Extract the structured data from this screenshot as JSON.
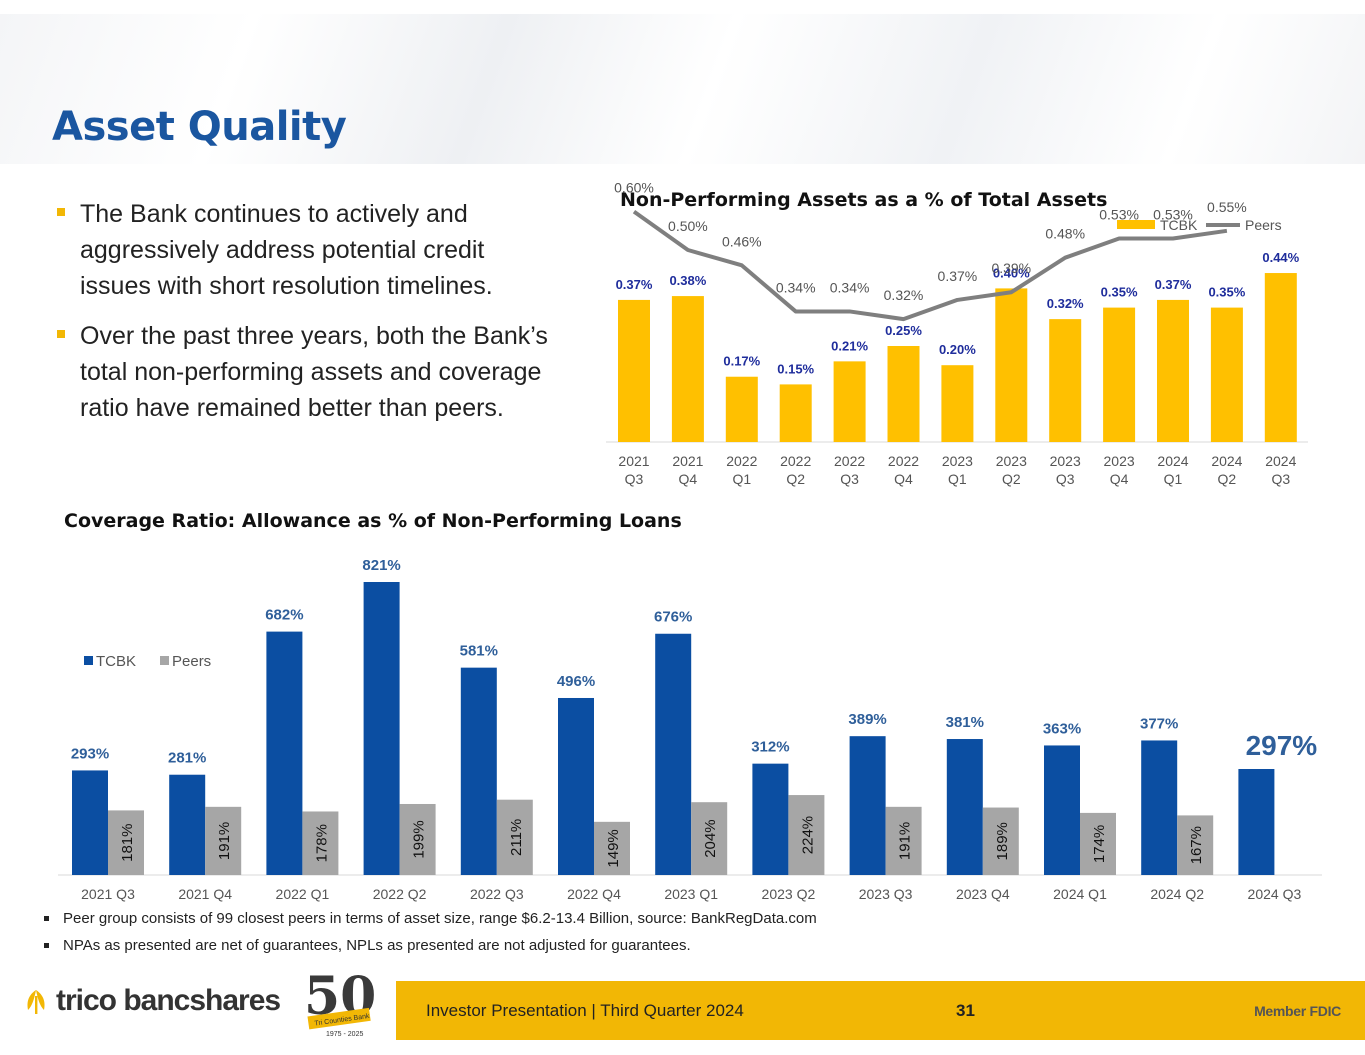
{
  "page": {
    "title": "Asset Quality",
    "bullets": [
      "The Bank continues to actively and aggressively address potential credit issues with short resolution timelines.",
      "Over the past three years, both the Bank’s total non-performing assets and coverage ratio have remained better than peers."
    ],
    "footnotes": [
      "Peer group consists of 99 closest peers in terms of asset size, range $6.2-13.4 Billion, source: BankRegData.com",
      "NPAs  as presented are net of guarantees, NPLs as presented are not adjusted for guarantees."
    ]
  },
  "footer": {
    "text": "Investor Presentation  |  Third Quarter 2024",
    "page_number": "31",
    "fdic": "Member FDIC",
    "logo_text": "trico bancshares",
    "anniversary": "50",
    "anniversary_banner": "Tri Counties Bank",
    "anniversary_years": "1975 - 2025"
  },
  "colors": {
    "title": "#1a56a0",
    "tcbk_gold": "#ffc000",
    "tcbk_blue": "#0b4ea2",
    "peers_gray": "#a6a6a6",
    "peers_line": "#7f7f7f",
    "npa_label": "#1f2d9c",
    "coverage_label": "#2f5f9a",
    "footer_bar": "#f2b705"
  },
  "chart_data": [
    {
      "type": "bar",
      "title": "Non-Performing Assets as a % of Total Assets",
      "categories": [
        [
          "2021",
          "Q3"
        ],
        [
          "2021",
          "Q4"
        ],
        [
          "2022",
          "Q1"
        ],
        [
          "2022",
          "Q2"
        ],
        [
          "2022",
          "Q3"
        ],
        [
          "2022",
          "Q4"
        ],
        [
          "2023",
          "Q1"
        ],
        [
          "2023",
          "Q2"
        ],
        [
          "2023",
          "Q3"
        ],
        [
          "2023",
          "Q4"
        ],
        [
          "2024",
          "Q1"
        ],
        [
          "2024",
          "Q2"
        ],
        [
          "2024",
          "Q3"
        ]
      ],
      "series": [
        {
          "name": "TCBK",
          "kind": "bar",
          "values": [
            0.37,
            0.38,
            0.17,
            0.15,
            0.21,
            0.25,
            0.2,
            0.4,
            0.32,
            0.35,
            0.37,
            0.35,
            0.44
          ],
          "labels": [
            "0.37%",
            "0.38%",
            "0.17%",
            "0.15%",
            "0.21%",
            "0.25%",
            "0.20%",
            "0.40%",
            "0.32%",
            "0.35%",
            "0.37%",
            "0.35%",
            "0.44%"
          ]
        },
        {
          "name": "Peers",
          "kind": "line",
          "values": [
            0.6,
            0.5,
            0.46,
            0.34,
            0.34,
            0.32,
            0.37,
            0.39,
            0.48,
            0.53,
            0.53,
            0.55,
            null
          ],
          "labels": [
            "0.60%",
            "0.50%",
            "0.46%",
            "0.34%",
            "0.34%",
            "0.32%",
            "0.37%",
            "0.39%",
            "0.48%",
            "0.53%",
            "0.53%",
            "0.55%",
            ""
          ]
        }
      ],
      "ylim": [
        0,
        0.75
      ],
      "legend": "top-right",
      "grid": false
    },
    {
      "type": "bar",
      "title": "Coverage Ratio:  Allowance as % of Non-Performing Loans",
      "categories": [
        "2021 Q3",
        "2021 Q4",
        "2022 Q1",
        "2022 Q2",
        "2022 Q3",
        "2022 Q4",
        "2023 Q1",
        "2023 Q2",
        "2023 Q3",
        "2023 Q4",
        "2024 Q1",
        "2024 Q2",
        "2024 Q3"
      ],
      "series": [
        {
          "name": "TCBK",
          "values": [
            293,
            281,
            682,
            821,
            581,
            496,
            676,
            312,
            389,
            381,
            363,
            377,
            297
          ],
          "labels": [
            "293%",
            "281%",
            "682%",
            "821%",
            "581%",
            "496%",
            "676%",
            "312%",
            "389%",
            "381%",
            "363%",
            "377%",
            "297%"
          ]
        },
        {
          "name": "Peers",
          "values": [
            181,
            191,
            178,
            199,
            211,
            149,
            204,
            224,
            191,
            189,
            174,
            167,
            null
          ],
          "labels": [
            "181%",
            "191%",
            "178%",
            "199%",
            "211%",
            "149%",
            "204%",
            "224%",
            "191%",
            "189%",
            "174%",
            "167%",
            ""
          ]
        }
      ],
      "ylim": [
        0,
        850
      ],
      "legend": "top-left",
      "grid": false
    }
  ]
}
